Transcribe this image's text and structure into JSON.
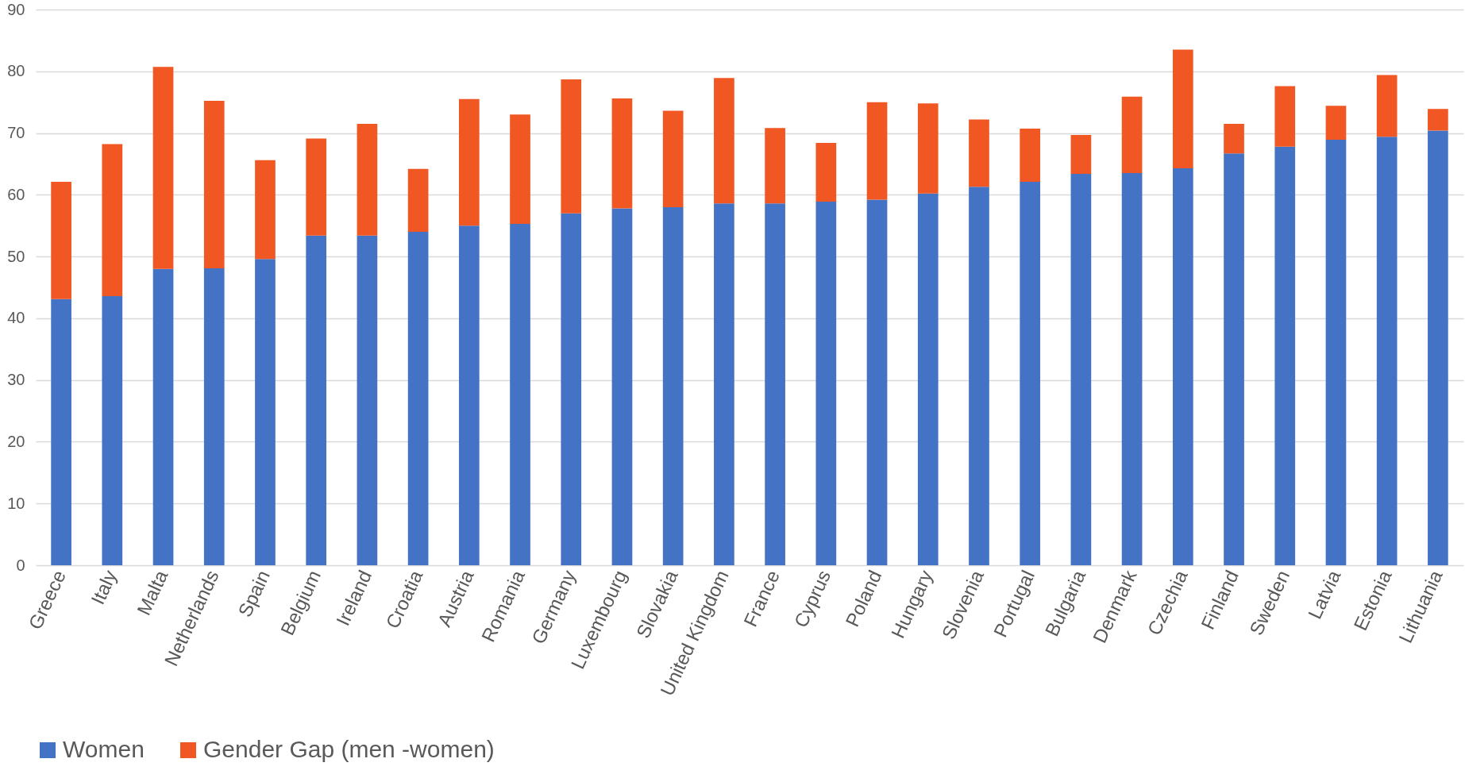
{
  "chart_data": {
    "type": "bar",
    "stacked": true,
    "categories": [
      "Greece",
      "Italy",
      "Malta",
      "Netherlands",
      "Spain",
      "Belgium",
      "Ireland",
      "Croatia",
      "Austria",
      "Romania",
      "Germany",
      "Luxembourg",
      "Slovakia",
      "United Kingdom",
      "France",
      "Cyprus",
      "Poland",
      "Hungary",
      "Slovenia",
      "Portugal",
      "Bulgaria",
      "Denmark",
      "Czechia",
      "Finland",
      "Sweden",
      "Latvia",
      "Estonia",
      "Lithuania"
    ],
    "series": [
      {
        "name": "Women",
        "color": "#4472c4",
        "values": [
          43.1,
          43.6,
          48.0,
          48.1,
          49.6,
          53.4,
          53.4,
          54.0,
          55.0,
          55.3,
          57.0,
          57.8,
          58.0,
          58.6,
          58.6,
          58.9,
          59.2,
          60.2,
          61.3,
          62.1,
          63.4,
          63.5,
          64.3,
          66.7,
          67.8,
          68.9,
          69.4,
          70.4
        ]
      },
      {
        "name": "Gender Gap (men -women)",
        "color": "#f15722",
        "values": [
          19.0,
          24.6,
          32.7,
          27.1,
          16.0,
          15.7,
          18.1,
          10.2,
          20.5,
          17.7,
          21.7,
          17.8,
          15.6,
          20.3,
          12.2,
          9.5,
          15.8,
          14.6,
          10.9,
          8.6,
          6.3,
          12.4,
          19.2,
          4.8,
          9.8,
          5.5,
          10.0,
          3.5
        ]
      }
    ],
    "ylim": [
      0,
      90
    ],
    "yticks": [
      0,
      10,
      20,
      30,
      40,
      50,
      60,
      70,
      80,
      90
    ],
    "grid": "y",
    "legend": "bottom"
  }
}
